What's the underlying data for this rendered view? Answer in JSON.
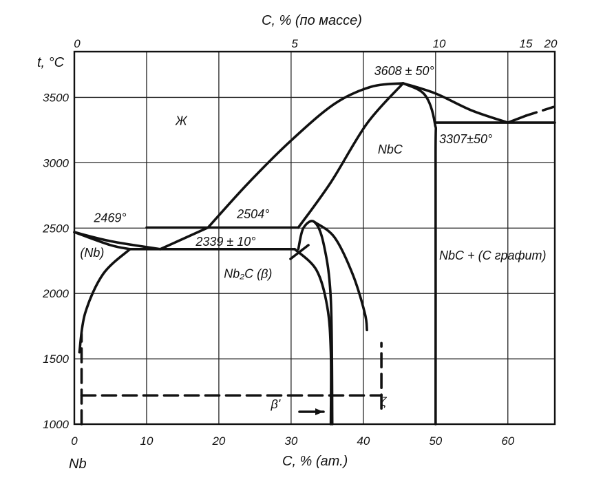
{
  "chart_data": {
    "type": "line",
    "subtype": "phase-diagram",
    "top_axis": {
      "label": "C, % (по массе)",
      "ticks": [
        "0",
        "5",
        "10",
        "15",
        "20"
      ],
      "tick_positions_at_pct": [
        0,
        30.5,
        50.5,
        62.5,
        67.5
      ]
    },
    "bottom_axis": {
      "label": "C, % (ат.)",
      "ticks": [
        "0",
        "10",
        "20",
        "30",
        "40",
        "50",
        "60"
      ],
      "range": [
        0,
        66.5
      ],
      "element_label": "Nb"
    },
    "y_axis": {
      "label": "t, °C",
      "ticks": [
        "1000",
        "1500",
        "2000",
        "2500",
        "3000",
        "3500"
      ],
      "range": [
        1000,
        3850
      ]
    },
    "grid": true,
    "annotations": [
      {
        "id": "liquid",
        "text": "Ж",
        "x": 14,
        "y": 3290
      },
      {
        "id": "t2469",
        "text": "2469°",
        "x": 2.7,
        "y": 2545
      },
      {
        "id": "nb",
        "text": "(Nb)",
        "x": 0.8,
        "y": 2280
      },
      {
        "id": "t2504",
        "text": "2504°",
        "x": 22.5,
        "y": 2575
      },
      {
        "id": "t2339",
        "text": "2339 ± 10°",
        "x": 16.8,
        "y": 2365
      },
      {
        "id": "nb2c",
        "text": "Nb₂C (β)",
        "x": 20.7,
        "y": 2120
      },
      {
        "id": "t3608",
        "text": "3608 ± 50°",
        "x": 41.5,
        "y": 3670
      },
      {
        "id": "nbc",
        "text": "NbC",
        "x": 42.0,
        "y": 3070
      },
      {
        "id": "t3307",
        "text": "3307±50°",
        "x": 50.5,
        "y": 3150
      },
      {
        "id": "nbc_graphite",
        "text": "NbC + (C графит)",
        "x": 50.5,
        "y": 2260
      },
      {
        "id": "beta_prime",
        "text": "β'",
        "x": 27.2,
        "y": 1120
      },
      {
        "id": "zeta",
        "text": "ζ",
        "x": 42.4,
        "y": 1140
      }
    ],
    "curves": [
      {
        "name": "liquidus Nb side",
        "points": [
          [
            0,
            2469
          ],
          [
            5,
            2400
          ],
          [
            11.9,
            2339
          ]
        ]
      },
      {
        "name": "liquidus Nb2C",
        "points": [
          [
            11.9,
            2339
          ],
          [
            18.5,
            2504
          ]
        ]
      },
      {
        "name": "liquidus NbC",
        "points": [
          [
            18.5,
            2504
          ],
          [
            24,
            2840
          ],
          [
            30,
            3170
          ],
          [
            36,
            3450
          ],
          [
            41,
            3580
          ],
          [
            45.5,
            3608
          ]
        ]
      },
      {
        "name": "liquidus NbC right",
        "points": [
          [
            45.5,
            3608
          ],
          [
            50,
            3530
          ],
          [
            55,
            3400
          ],
          [
            60,
            3307
          ]
        ]
      },
      {
        "name": "liquidus graphite",
        "points": [
          [
            60,
            3307
          ],
          [
            62.5,
            3360
          ]
        ]
      },
      {
        "name": "liquidus graphite dashed",
        "points": [
          [
            62.5,
            3360
          ],
          [
            66.5,
            3430
          ]
        ]
      },
      {
        "name": "solidus NbC left",
        "points": [
          [
            31,
            2504
          ],
          [
            35.5,
            2850
          ],
          [
            40.5,
            3300
          ],
          [
            45.5,
            3608
          ]
        ]
      },
      {
        "name": "solidus NbC right",
        "points": [
          [
            45.5,
            3608
          ],
          [
            48.5,
            3520
          ],
          [
            49.9,
            3300
          ],
          [
            50,
            3000
          ],
          [
            50,
            1000
          ]
        ]
      },
      {
        "name": "Nb solidus",
        "points": [
          [
            0,
            2469
          ],
          [
            5,
            2370
          ],
          [
            7.7,
            2339
          ]
        ]
      },
      {
        "name": "Nb solvus",
        "points": [
          [
            7.7,
            2339
          ],
          [
            4,
            2150
          ],
          [
            1.5,
            1850
          ],
          [
            0.7,
            1550
          ]
        ]
      },
      {
        "name": "beta Nb2C left",
        "points": [
          [
            30.5,
            2339
          ],
          [
            33.5,
            2180
          ],
          [
            35,
            1900
          ],
          [
            35.5,
            1550
          ],
          [
            35.5,
            1000
          ]
        ]
      },
      {
        "name": "beta Nb2C right",
        "points": [
          [
            33.2,
            2548
          ],
          [
            36,
            2430
          ],
          [
            38.5,
            2150
          ],
          [
            40.2,
            1850
          ],
          [
            40.5,
            1720
          ]
        ]
      },
      {
        "name": "beta dome",
        "points": [
          [
            31,
            2339
          ],
          [
            31.7,
            2500
          ],
          [
            33.2,
            2548
          ],
          [
            34.5,
            2380
          ],
          [
            35.5,
            1950
          ],
          [
            35.7,
            1000
          ]
        ]
      }
    ],
    "horizontal_lines": [
      {
        "name": "peritectic 2504",
        "y": 2504,
        "x": [
          10,
          31
        ]
      },
      {
        "name": "eutectic 2339",
        "y": 2339,
        "x": [
          7.7,
          30.5
        ]
      },
      {
        "name": "eutectic 3307",
        "y": 3307,
        "x": [
          50,
          66.5
        ]
      }
    ],
    "dashed_lines": [
      {
        "name": "beta' boundary",
        "points": [
          [
            1,
            1000
          ],
          [
            1,
            1690
          ]
        ]
      },
      {
        "name": "zeta horizontal",
        "points": [
          [
            1,
            1220
          ],
          [
            42.5,
            1220
          ]
        ]
      },
      {
        "name": "zeta vertical",
        "points": [
          [
            42.5,
            1120
          ],
          [
            42.5,
            1620
          ]
        ]
      }
    ]
  }
}
